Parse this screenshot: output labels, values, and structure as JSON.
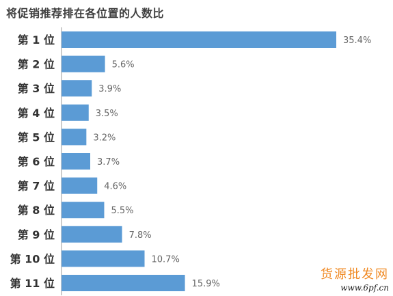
{
  "chart_data": {
    "type": "bar",
    "orientation": "horizontal",
    "title": "将促销推荐排在各位置的人数比",
    "categories": [
      "第 1 位",
      "第 2 位",
      "第 3 位",
      "第 4 位",
      "第 5 位",
      "第 6 位",
      "第 7 位",
      "第 8 位",
      "第 9 位",
      "第 10 位",
      "第 11 位"
    ],
    "values": [
      35.4,
      5.6,
      3.9,
      3.5,
      3.2,
      3.7,
      4.6,
      5.5,
      7.8,
      10.7,
      15.9
    ],
    "value_labels": [
      "35.4%",
      "5.6%",
      "3.9%",
      "3.5%",
      "3.2%",
      "3.7%",
      "4.6%",
      "5.5%",
      "7.8%",
      "10.7%",
      "15.9%"
    ],
    "xlim": [
      0,
      35.4
    ],
    "grid": false,
    "color": "#5b9bd5"
  },
  "watermark": {
    "text": "货源批发网",
    "url": "www.6pf.cn"
  }
}
